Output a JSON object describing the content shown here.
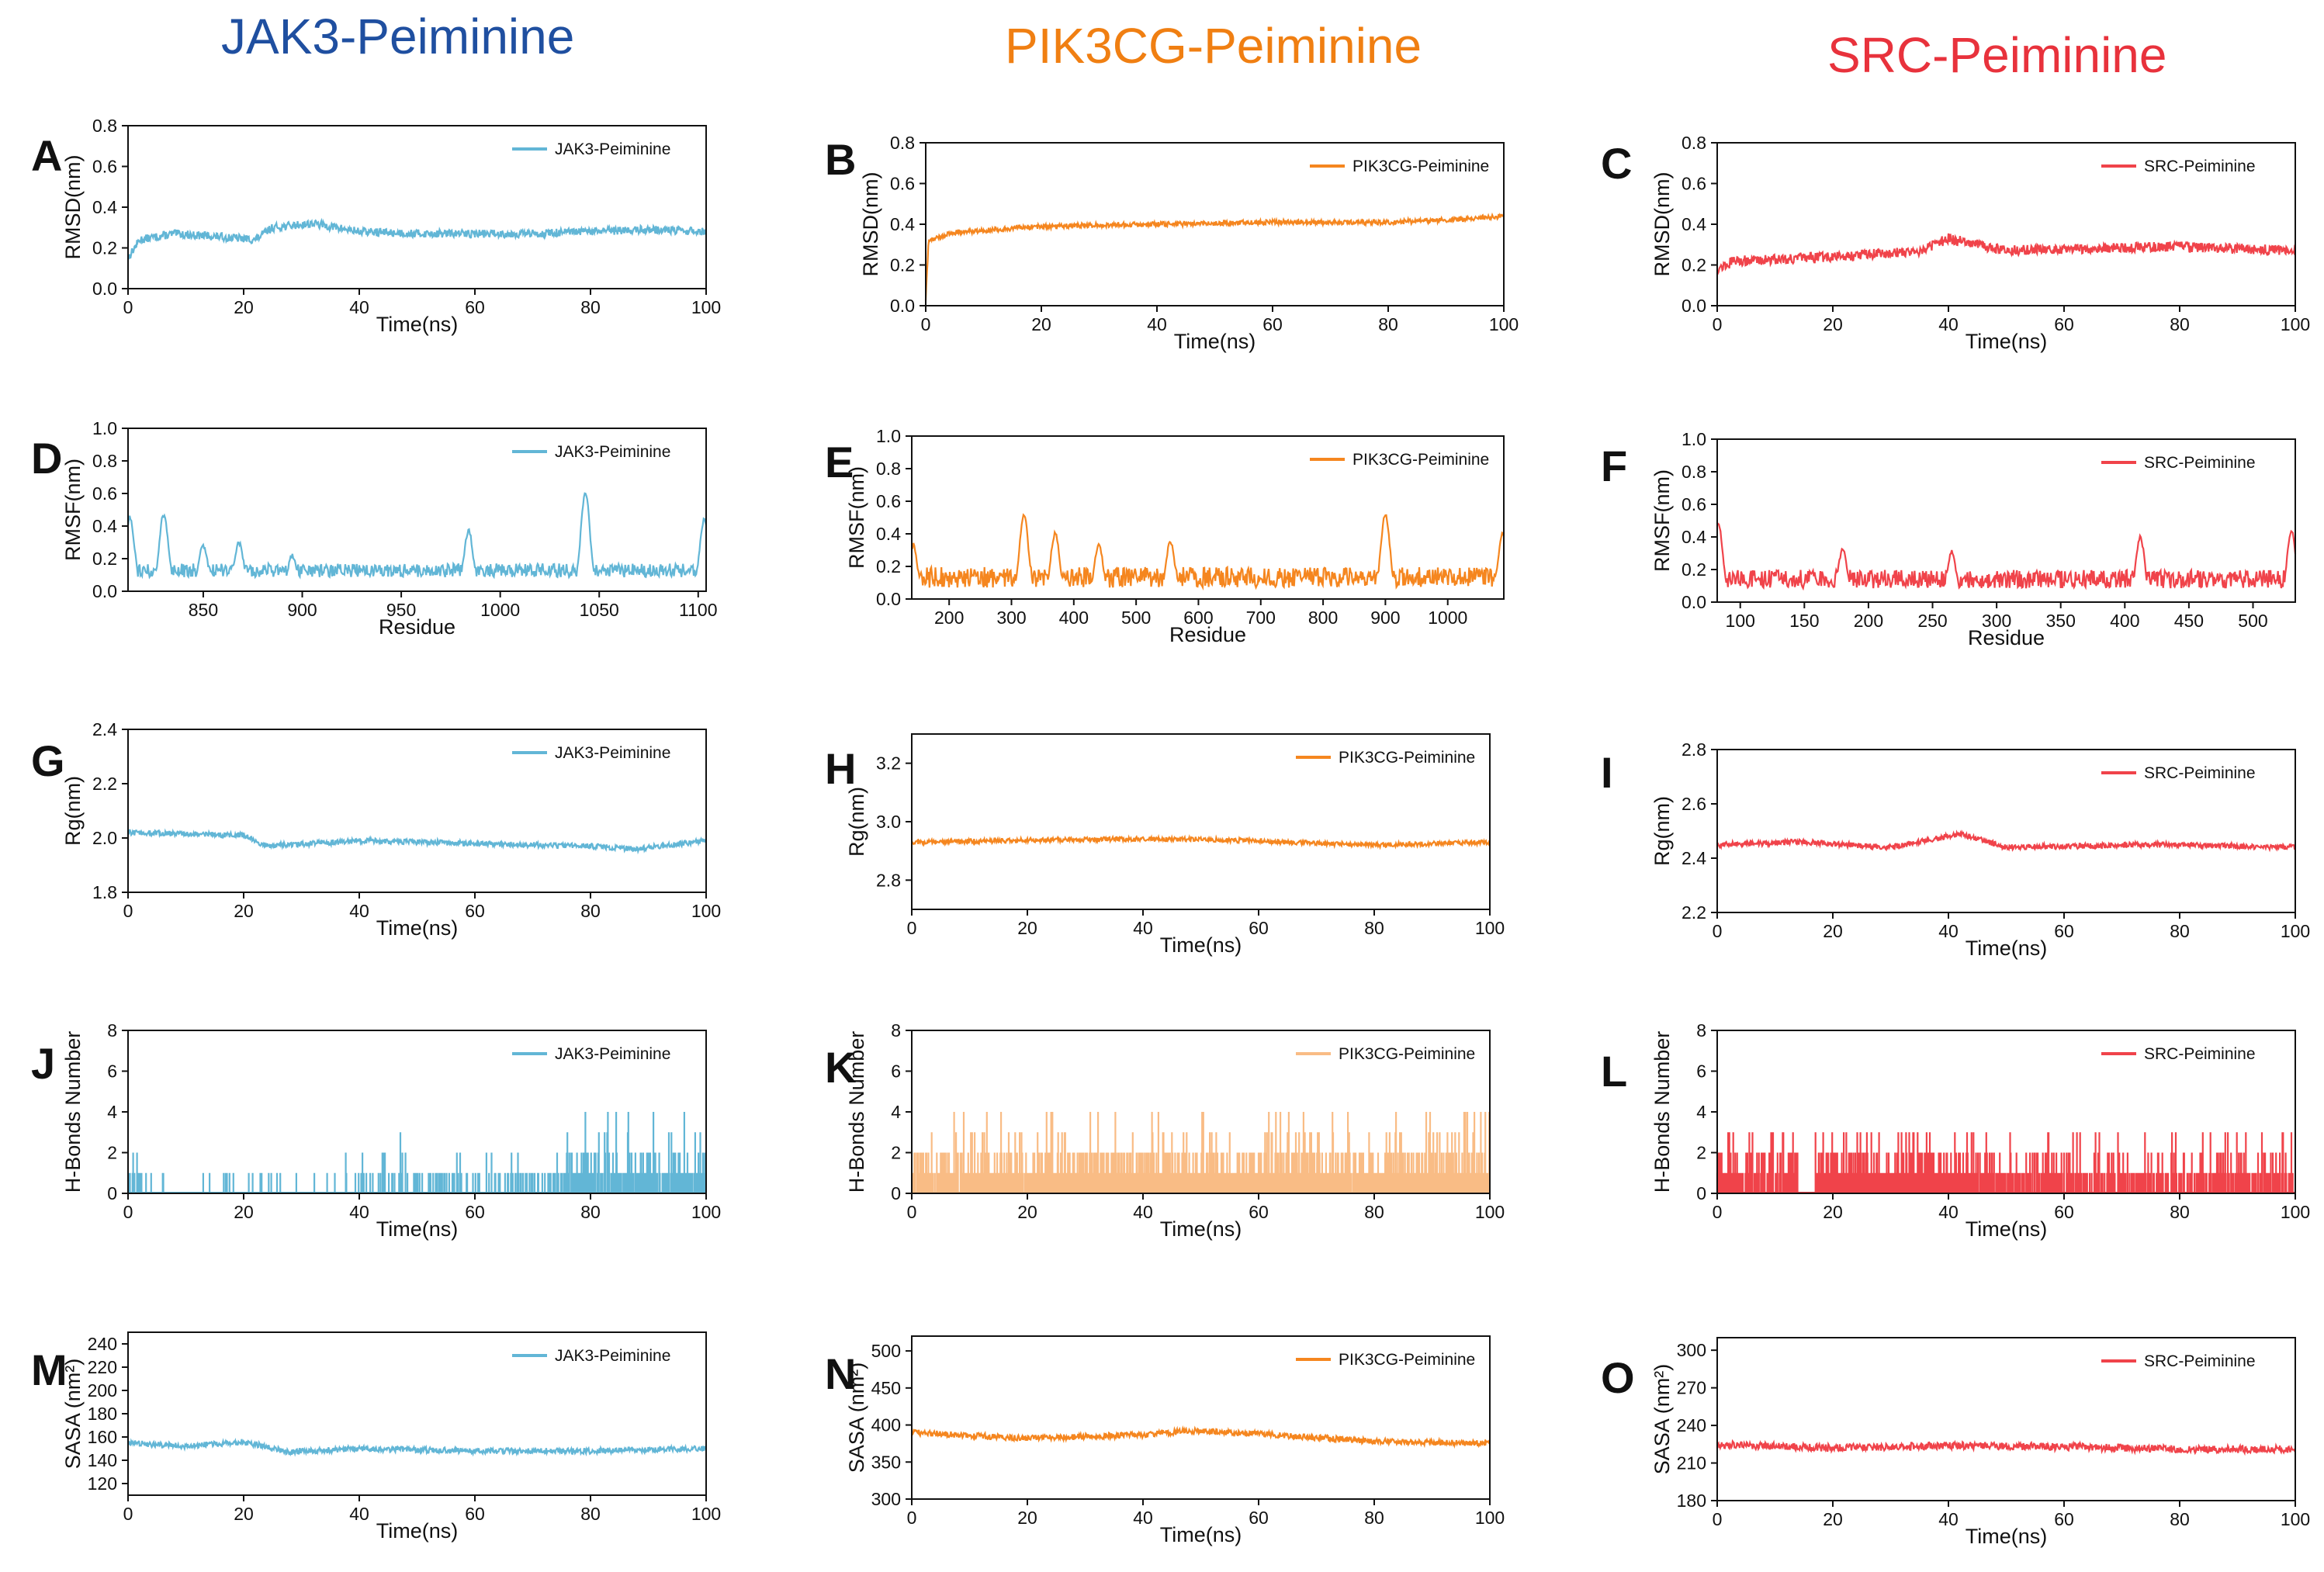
{
  "figure": {
    "column_titles": [
      {
        "text": "JAK3-Peiminine",
        "color": "#1f4fa0"
      },
      {
        "text": "PIK3CG-Peiminine",
        "color": "#f07f12"
      },
      {
        "text": "SRC-Peiminine",
        "color": "#e8323c"
      }
    ]
  },
  "chart_data": [
    {
      "panel": "A",
      "type": "line",
      "series_name": "JAK3-Peiminine",
      "color": "#62b6d6",
      "xlabel": "Time(ns)",
      "ylabel": "RMSD(nm)",
      "xlim": [
        0,
        100
      ],
      "ylim": [
        0,
        0.8
      ],
      "xticks": [
        0,
        20,
        40,
        60,
        80,
        100
      ],
      "yticks": [
        0.0,
        0.2,
        0.4,
        0.6,
        0.8
      ],
      "ytick_labels": [
        "0.0",
        "0.2",
        "0.4",
        "0.6",
        "0.8"
      ],
      "kind": "ts",
      "keypoints": [
        [
          0,
          0.15
        ],
        [
          2,
          0.24
        ],
        [
          8,
          0.27
        ],
        [
          18,
          0.25
        ],
        [
          22,
          0.24
        ],
        [
          25,
          0.3
        ],
        [
          32,
          0.32
        ],
        [
          40,
          0.28
        ],
        [
          50,
          0.27
        ],
        [
          60,
          0.27
        ],
        [
          70,
          0.27
        ],
        [
          80,
          0.28
        ],
        [
          90,
          0.29
        ],
        [
          100,
          0.28
        ]
      ],
      "noise": 0.02,
      "legend": "top-right"
    },
    {
      "panel": "B",
      "type": "line",
      "series_name": "PIK3CG-Peiminine",
      "color": "#f5861f",
      "xlabel": "Time(ns)",
      "ylabel": "RMSD(nm)",
      "xlim": [
        0,
        100
      ],
      "ylim": [
        0,
        0.8
      ],
      "xticks": [
        0,
        20,
        40,
        60,
        80,
        100
      ],
      "yticks": [
        0.0,
        0.2,
        0.4,
        0.6,
        0.8
      ],
      "ytick_labels": [
        "0.0",
        "0.2",
        "0.4",
        "0.6",
        "0.8"
      ],
      "kind": "ts",
      "keypoints": [
        [
          0,
          0.03
        ],
        [
          0.5,
          0.32
        ],
        [
          5,
          0.36
        ],
        [
          20,
          0.39
        ],
        [
          40,
          0.4
        ],
        [
          60,
          0.41
        ],
        [
          80,
          0.41
        ],
        [
          90,
          0.42
        ],
        [
          100,
          0.44
        ]
      ],
      "noise": 0.012,
      "legend": "top-right"
    },
    {
      "panel": "C",
      "type": "line",
      "series_name": "SRC-Peiminine",
      "color": "#f0434a",
      "xlabel": "Time(ns)",
      "ylabel": "RMSD(nm)",
      "xlim": [
        0,
        100
      ],
      "ylim": [
        0,
        0.8
      ],
      "xticks": [
        0,
        20,
        40,
        60,
        80,
        100
      ],
      "yticks": [
        0.0,
        0.2,
        0.4,
        0.6,
        0.8
      ],
      "ytick_labels": [
        "0.0",
        "0.2",
        "0.4",
        "0.6",
        "0.8"
      ],
      "kind": "ts",
      "keypoints": [
        [
          0,
          0.18
        ],
        [
          3,
          0.22
        ],
        [
          20,
          0.24
        ],
        [
          35,
          0.27
        ],
        [
          40,
          0.33
        ],
        [
          45,
          0.3
        ],
        [
          50,
          0.27
        ],
        [
          60,
          0.28
        ],
        [
          80,
          0.29
        ],
        [
          100,
          0.27
        ]
      ],
      "noise": 0.025,
      "legend": "top-right"
    },
    {
      "panel": "D",
      "type": "line",
      "series_name": "JAK3-Peiminine",
      "color": "#62b6d6",
      "xlabel": "Residue",
      "ylabel": "RMSF(nm)",
      "xlim": [
        812,
        1104
      ],
      "ylim": [
        0,
        1.0
      ],
      "xticks": [
        850,
        900,
        950,
        1000,
        1050,
        1100
      ],
      "yticks": [
        0.0,
        0.2,
        0.4,
        0.6,
        0.8,
        1.0
      ],
      "ytick_labels": [
        "0.0",
        "0.2",
        "0.4",
        "0.6",
        "0.8",
        "1.0"
      ],
      "kind": "rmsf",
      "base": 0.12,
      "peaks": [
        [
          813,
          0.45
        ],
        [
          830,
          0.47
        ],
        [
          850,
          0.28
        ],
        [
          868,
          0.3
        ],
        [
          895,
          0.22
        ],
        [
          955,
          0.12
        ],
        [
          984,
          0.37
        ],
        [
          1043,
          0.61
        ],
        [
          1103,
          0.44
        ]
      ],
      "noise": 0.06,
      "legend": "top-right"
    },
    {
      "panel": "E",
      "type": "line",
      "series_name": "PIK3CG-Peiminine",
      "color": "#f5861f",
      "xlabel": "Residue",
      "ylabel": "RMSF(nm)",
      "xlim": [
        140,
        1090
      ],
      "ylim": [
        0,
        1.0
      ],
      "xticks": [
        200,
        300,
        400,
        500,
        600,
        700,
        800,
        900,
        1000
      ],
      "yticks": [
        0.0,
        0.2,
        0.4,
        0.6,
        0.8,
        1.0
      ],
      "ytick_labels": [
        "0.0",
        "0.2",
        "0.4",
        "0.6",
        "0.8",
        "1.0"
      ],
      "kind": "rmsf",
      "base": 0.12,
      "peaks": [
        [
          142,
          0.33
        ],
        [
          320,
          0.51
        ],
        [
          370,
          0.4
        ],
        [
          440,
          0.33
        ],
        [
          555,
          0.35
        ],
        [
          900,
          0.52
        ],
        [
          1088,
          0.4
        ]
      ],
      "noise": 0.09,
      "legend": "top-right"
    },
    {
      "panel": "F",
      "type": "line",
      "series_name": "SRC-Peiminine",
      "color": "#f0434a",
      "xlabel": "Residue",
      "ylabel": "RMSF(nm)",
      "xlim": [
        82,
        533
      ],
      "ylim": [
        0,
        1.0
      ],
      "xticks": [
        100,
        150,
        200,
        250,
        300,
        350,
        400,
        450,
        500
      ],
      "yticks": [
        0.0,
        0.2,
        0.4,
        0.6,
        0.8,
        1.0
      ],
      "ytick_labels": [
        "0.0",
        "0.2",
        "0.4",
        "0.6",
        "0.8",
        "1.0"
      ],
      "kind": "rmsf",
      "base": 0.13,
      "peaks": [
        [
          83,
          0.48
        ],
        [
          180,
          0.33
        ],
        [
          265,
          0.31
        ],
        [
          412,
          0.4
        ],
        [
          530,
          0.43
        ]
      ],
      "noise": 0.08,
      "legend": "top-right"
    },
    {
      "panel": "G",
      "type": "line",
      "series_name": "JAK3-Peiminine",
      "color": "#62b6d6",
      "xlabel": "Time(ns)",
      "ylabel": "Rg(nm)",
      "xlim": [
        0,
        100
      ],
      "ylim": [
        1.8,
        2.4
      ],
      "xticks": [
        0,
        20,
        40,
        60,
        80,
        100
      ],
      "yticks": [
        1.8,
        2.0,
        2.2,
        2.4
      ],
      "ytick_labels": [
        "1.8",
        "2.0",
        "2.2",
        "2.4"
      ],
      "kind": "ts",
      "keypoints": [
        [
          0,
          2.02
        ],
        [
          20,
          2.01
        ],
        [
          24,
          1.97
        ],
        [
          40,
          1.99
        ],
        [
          60,
          1.98
        ],
        [
          80,
          1.97
        ],
        [
          88,
          1.96
        ],
        [
          100,
          1.99
        ]
      ],
      "noise": 0.01,
      "legend": "top-right"
    },
    {
      "panel": "H",
      "type": "line",
      "series_name": "PIK3CG-Peiminine",
      "color": "#f5861f",
      "xlabel": "Time(ns)",
      "ylabel": "Rg(nm)",
      "xlim": [
        0,
        100
      ],
      "ylim": [
        2.7,
        3.3
      ],
      "xticks": [
        0,
        20,
        40,
        60,
        80,
        100
      ],
      "yticks": [
        2.8,
        3.0,
        3.2
      ],
      "ytick_labels": [
        "2.8",
        "3.0",
        "3.2"
      ],
      "kind": "ts",
      "keypoints": [
        [
          0,
          2.93
        ],
        [
          30,
          2.94
        ],
        [
          50,
          2.94
        ],
        [
          80,
          2.92
        ],
        [
          100,
          2.93
        ]
      ],
      "noise": 0.008,
      "legend": "top-right"
    },
    {
      "panel": "I",
      "type": "line",
      "series_name": "SRC-Peiminine",
      "color": "#f0434a",
      "xlabel": "Time(ns)",
      "ylabel": "Rg(nm)",
      "xlim": [
        0,
        100
      ],
      "ylim": [
        2.2,
        2.8
      ],
      "xticks": [
        0,
        20,
        40,
        60,
        80,
        100
      ],
      "yticks": [
        2.2,
        2.4,
        2.6,
        2.8
      ],
      "ytick_labels": [
        "2.2",
        "2.4",
        "2.6",
        "2.8"
      ],
      "kind": "ts",
      "keypoints": [
        [
          0,
          2.45
        ],
        [
          15,
          2.46
        ],
        [
          30,
          2.44
        ],
        [
          42,
          2.49
        ],
        [
          50,
          2.44
        ],
        [
          75,
          2.45
        ],
        [
          100,
          2.44
        ]
      ],
      "noise": 0.01,
      "legend": "top-right"
    },
    {
      "panel": "J",
      "type": "line",
      "series_name": "JAK3-Peiminine",
      "color": "#62b6d6",
      "xlabel": "Time(ns)",
      "ylabel": "H-Bonds Number",
      "xlim": [
        0,
        100
      ],
      "ylim": [
        0,
        8
      ],
      "xticks": [
        0,
        20,
        40,
        60,
        80,
        100
      ],
      "yticks": [
        0,
        2,
        4,
        6,
        8
      ],
      "ytick_labels": [
        "0",
        "2",
        "4",
        "6",
        "8"
      ],
      "kind": "hb",
      "segments": [
        [
          0,
          3,
          0.6
        ],
        [
          3,
          40,
          0.06
        ],
        [
          40,
          75,
          0.25
        ],
        [
          75,
          100,
          0.75
        ]
      ],
      "maxv": 4,
      "legend": "top-right"
    },
    {
      "panel": "K",
      "type": "line",
      "series_name": "PIK3CG-Peiminine",
      "color": "#f9bc85",
      "xlabel": "Time(ns)",
      "ylabel": "H-Bonds Number",
      "xlim": [
        0,
        100
      ],
      "ylim": [
        0,
        8
      ],
      "xticks": [
        0,
        20,
        40,
        60,
        80,
        100
      ],
      "yticks": [
        0,
        2,
        4,
        6,
        8
      ],
      "ytick_labels": [
        "0",
        "2",
        "4",
        "6",
        "8"
      ],
      "kind": "hb",
      "segments": [
        [
          0,
          25,
          0.85
        ],
        [
          25,
          90,
          0.97
        ],
        [
          90,
          100,
          1.0
        ]
      ],
      "maxv": 4,
      "legend": "top-right"
    },
    {
      "panel": "L",
      "type": "line",
      "series_name": "SRC-Peiminine",
      "color": "#f0434a",
      "xlabel": "Time(ns)",
      "ylabel": "H-Bonds Number",
      "xlim": [
        0,
        100
      ],
      "ylim": [
        0,
        8
      ],
      "xticks": [
        0,
        20,
        40,
        60,
        80,
        100
      ],
      "yticks": [
        0,
        2,
        4,
        6,
        8
      ],
      "ytick_labels": [
        "0",
        "2",
        "4",
        "6",
        "8"
      ],
      "kind": "hb",
      "segments": [
        [
          0,
          14,
          0.8
        ],
        [
          14,
          17,
          0.0
        ],
        [
          17,
          45,
          0.95
        ],
        [
          45,
          100,
          0.6
        ]
      ],
      "maxv": 3,
      "legend": "top-right"
    },
    {
      "panel": "M",
      "type": "line",
      "series_name": "JAK3-Peiminine",
      "color": "#62b6d6",
      "xlabel": "Time(ns)",
      "ylabel": "SASA (nm²)",
      "xlim": [
        0,
        100
      ],
      "ylim": [
        110,
        250
      ],
      "xticks": [
        0,
        20,
        40,
        60,
        80,
        100
      ],
      "yticks": [
        120,
        140,
        160,
        180,
        200,
        220,
        240
      ],
      "ytick_labels": [
        "120",
        "140",
        "160",
        "180",
        "200",
        "220",
        "240"
      ],
      "kind": "ts",
      "keypoints": [
        [
          0,
          155
        ],
        [
          10,
          152
        ],
        [
          20,
          156
        ],
        [
          28,
          147
        ],
        [
          40,
          150
        ],
        [
          60,
          148
        ],
        [
          80,
          148
        ],
        [
          100,
          150
        ]
      ],
      "noise": 2.5,
      "legend": "top-right"
    },
    {
      "panel": "N",
      "type": "line",
      "series_name": "PIK3CG-Peiminine",
      "color": "#f5861f",
      "xlabel": "Time(ns)",
      "ylabel": "SASA (nm²)",
      "xlim": [
        0,
        100
      ],
      "ylim": [
        300,
        520
      ],
      "xticks": [
        0,
        20,
        40,
        60,
        80,
        100
      ],
      "yticks": [
        300,
        350,
        400,
        450,
        500
      ],
      "ytick_labels": [
        "300",
        "350",
        "400",
        "450",
        "500"
      ],
      "kind": "ts",
      "keypoints": [
        [
          0,
          390
        ],
        [
          20,
          382
        ],
        [
          40,
          387
        ],
        [
          48,
          392
        ],
        [
          60,
          388
        ],
        [
          80,
          378
        ],
        [
          100,
          375
        ]
      ],
      "noise": 4,
      "legend": "top-right"
    },
    {
      "panel": "O",
      "type": "line",
      "series_name": "SRC-Peiminine",
      "color": "#f0434a",
      "xlabel": "Time(ns)",
      "ylabel": "SASA (nm²)",
      "xlim": [
        0,
        100
      ],
      "ylim": [
        180,
        310
      ],
      "xticks": [
        0,
        20,
        40,
        60,
        80,
        100
      ],
      "yticks": [
        180,
        210,
        240,
        270,
        300
      ],
      "ytick_labels": [
        "180",
        "210",
        "240",
        "270",
        "300"
      ],
      "kind": "ts",
      "keypoints": [
        [
          0,
          225
        ],
        [
          20,
          222
        ],
        [
          40,
          224
        ],
        [
          60,
          223
        ],
        [
          80,
          221
        ],
        [
          100,
          221
        ]
      ],
      "noise": 3,
      "legend": "top-right"
    }
  ]
}
